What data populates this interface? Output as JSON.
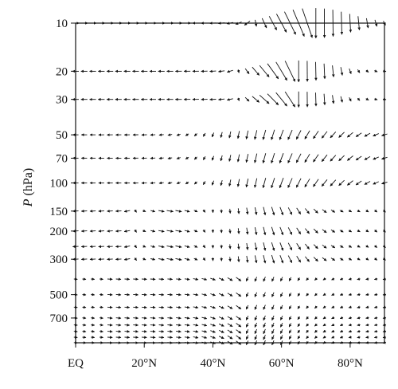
{
  "chart_data": {
    "type": "quiver",
    "title": "",
    "ylabel_var": "P",
    "ylabel_unit": "(hPa)",
    "xlabel": "",
    "x_tick_labels": [
      "EQ",
      "20°N",
      "40°N",
      "60°N",
      "80°N"
    ],
    "x_tick_values": [
      0,
      20,
      40,
      60,
      80
    ],
    "xlim": [
      0,
      90
    ],
    "y_tick_labels": [
      "10",
      "20",
      "30",
      "50",
      "70",
      "100",
      "150",
      "200",
      "300",
      "500",
      "700"
    ],
    "y_tick_values": [
      10,
      20,
      30,
      50,
      70,
      100,
      150,
      200,
      300,
      500,
      700
    ],
    "ylim": [
      10,
      1000
    ],
    "y_scale": "log",
    "y_inverted": true,
    "arrow_color": "#111111",
    "levels": [
      10,
      20,
      30,
      50,
      70,
      100,
      150,
      200,
      250,
      300,
      400,
      500,
      600,
      700,
      775,
      850,
      925,
      1000
    ],
    "longitudes_start": 0,
    "longitudes_step": 2.5,
    "longitudes_count": 37
  }
}
